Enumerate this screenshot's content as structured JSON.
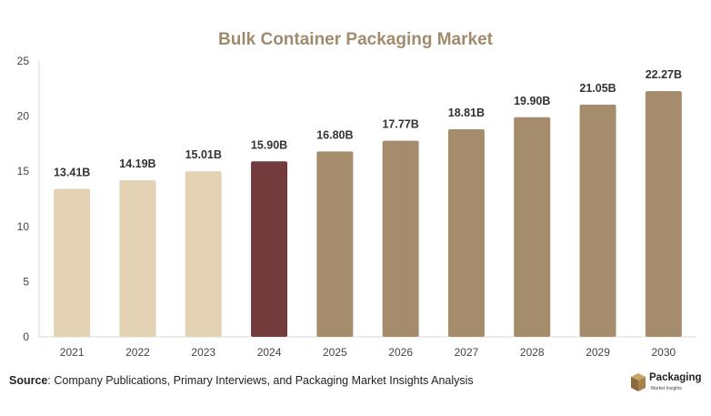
{
  "chart_data": {
    "type": "bar",
    "title": "Bulk Container Packaging Market",
    "categories": [
      "2021",
      "2022",
      "2023",
      "2024",
      "2025",
      "2026",
      "2027",
      "2028",
      "2029",
      "2030"
    ],
    "values": [
      13.41,
      14.19,
      15.01,
      15.9,
      16.8,
      17.77,
      18.81,
      19.9,
      21.05,
      22.27
    ],
    "data_labels": [
      "13.41B",
      "14.19B",
      "15.01B",
      "15.90B",
      "16.80B",
      "17.77B",
      "18.81B",
      "19.90B",
      "21.05B",
      "22.27B"
    ],
    "bar_colors": [
      "#e3d2b4",
      "#e3d2b4",
      "#e3d2b4",
      "#733b3b",
      "#a58c6c",
      "#a58c6c",
      "#a58c6c",
      "#a58c6c",
      "#a58c6c",
      "#a58c6c"
    ],
    "ylim": [
      0,
      25
    ],
    "yticks": [
      0,
      5,
      10,
      15,
      20,
      25
    ],
    "grid": false,
    "xlabel": "",
    "ylabel": ""
  },
  "colors": {
    "title": "#a08b6d",
    "history": "#e3d2b4",
    "base_year": "#733b3b",
    "forecast": "#a58c6c",
    "logo_cube_dark": "#8a6a3c",
    "logo_cube_light": "#c8a36a"
  },
  "source": {
    "label": "Source",
    "text": ": Company Publications, Primary Interviews, and Packaging Market Insights Analysis"
  },
  "logo": {
    "word": "Packaging",
    "subtitle": "Market Insights",
    "icon": "cube-icon"
  }
}
